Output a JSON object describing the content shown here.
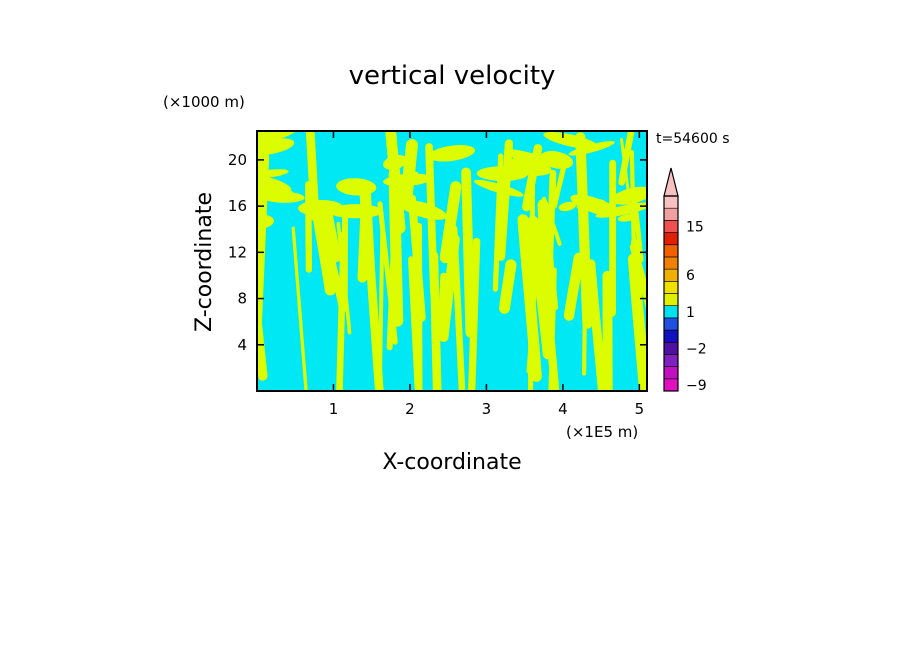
{
  "chart_data": {
    "type": "heatmap",
    "title": "vertical velocity",
    "xlabel": "X-coordinate",
    "ylabel": "Z-coordinate",
    "x_unit": "(×1E5 m)",
    "y_unit": "(×1000 m)",
    "time_label": "t=54600 s",
    "xlim": [
      0,
      5.1
    ],
    "ylim": [
      0,
      22.5
    ],
    "x_ticks": [
      "1",
      "2",
      "3",
      "4",
      "5"
    ],
    "y_ticks": [
      "4",
      "8",
      "12",
      "16",
      "20"
    ],
    "field_pattern": "alternating bands of weak upward (yellow) and weak downward (cyan) vertical velocity, tilted streaks across the domain",
    "colorbar": {
      "labels": [
        "15",
        "6",
        "1",
        "-2",
        "-9"
      ],
      "extend": "max",
      "colors": [
        "#e010c0",
        "#c010c0",
        "#8020c0",
        "#5010a0",
        "#1010c0",
        "#2050e0",
        "#00e0f0",
        "#e0f000",
        "#f0e000",
        "#f0b000",
        "#f08000",
        "#f06000",
        "#e02000",
        "#f05050",
        "#f0a0a0",
        "#f8c0c0"
      ]
    },
    "field_colors": {
      "up": "#dcfc00",
      "down": "#00e8f4"
    }
  }
}
